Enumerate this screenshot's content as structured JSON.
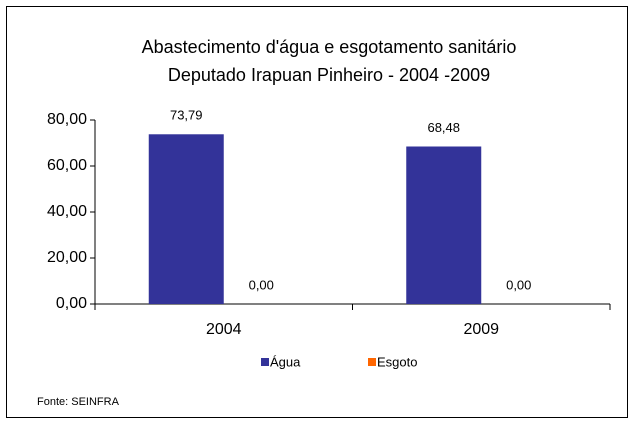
{
  "chart_data": {
    "type": "bar",
    "title": [
      "Abastecimento d'água e esgotamento sanitário",
      "Deputado Irapuan Pinheiro - 2004 -2009"
    ],
    "categories": [
      "2004",
      "2009"
    ],
    "series": [
      {
        "name": "Água",
        "color": "#333399",
        "values": [
          73.79,
          68.48
        ],
        "value_labels": [
          "73,79",
          "68,48"
        ]
      },
      {
        "name": "Esgoto",
        "color": "#FF6600",
        "values": [
          0,
          0
        ],
        "value_labels": [
          "0,00",
          "0,00"
        ]
      }
    ],
    "ylim": [
      0,
      80
    ],
    "yticks": [
      {
        "value": 0,
        "label": "0,00"
      },
      {
        "value": 20,
        "label": "20,00"
      },
      {
        "value": 40,
        "label": "40,00"
      },
      {
        "value": 60,
        "label": "60,00"
      },
      {
        "value": 80,
        "label": "80,00"
      }
    ],
    "grid": false,
    "legend": "bottom",
    "source": "Fonte: SEINFRA"
  }
}
